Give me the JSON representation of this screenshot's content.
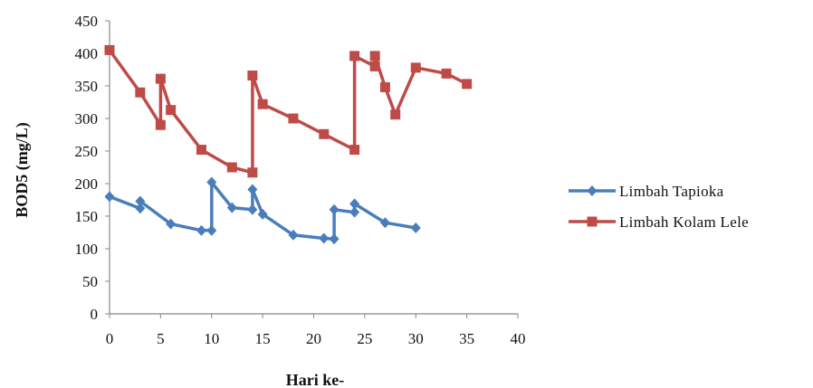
{
  "chart_data": {
    "type": "line",
    "title": "",
    "xlabel": "Hari ke-",
    "ylabel": "BOD5 (mg/L)",
    "xlim": [
      0,
      40
    ],
    "ylim": [
      0,
      450
    ],
    "x_ticks": [
      "0",
      "5",
      "10",
      "15",
      "20",
      "25",
      "30",
      "35",
      "40"
    ],
    "y_ticks": [
      "0",
      "50",
      "100",
      "150",
      "200",
      "250",
      "300",
      "350",
      "400",
      "450"
    ],
    "grid": false,
    "legend_position": "right",
    "series": [
      {
        "name": "Limbah Tapioka",
        "color": "#4a7ebb",
        "marker": "diamond",
        "x": [
          0,
          3,
          3,
          6,
          9,
          10,
          10,
          12,
          14,
          14,
          15,
          18,
          21,
          22,
          22,
          24,
          24,
          27,
          30
        ],
        "y": [
          180,
          162,
          173,
          138,
          128,
          128,
          202,
          163,
          160,
          191,
          153,
          121,
          116,
          115,
          160,
          156,
          169,
          140,
          132
        ]
      },
      {
        "name": "Limbah Kolam Lele",
        "color": "#be4b48",
        "marker": "square",
        "x": [
          0,
          3,
          5,
          5,
          6,
          9,
          12,
          14,
          14,
          15,
          18,
          21,
          24,
          24,
          26,
          26,
          27,
          28,
          30,
          33,
          35
        ],
        "y": [
          405,
          340,
          290,
          361,
          313,
          252,
          225,
          217,
          366,
          322,
          300,
          276,
          252,
          396,
          380,
          396,
          348,
          306,
          378,
          369,
          353
        ]
      }
    ]
  }
}
